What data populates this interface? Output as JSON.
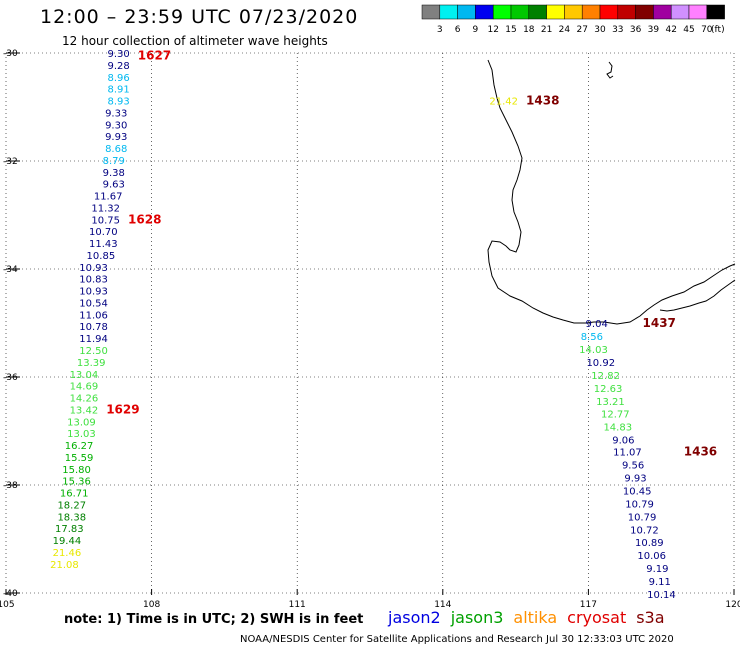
{
  "header": {
    "title": "12:00 – 23:59 UTC 07/23/2020",
    "subtitle": "12 hour collection of altimeter wave heights"
  },
  "colorbar": {
    "unit": "(ft)",
    "bins": [
      {
        "color": "#808080",
        "label": "3"
      },
      {
        "color": "#00f0f0",
        "label": "6"
      },
      {
        "color": "#00b8f0",
        "label": "9"
      },
      {
        "color": "#0000f0",
        "label": "12"
      },
      {
        "color": "#00ff00",
        "label": "15"
      },
      {
        "color": "#00c800",
        "label": "18"
      },
      {
        "color": "#008000",
        "label": "21"
      },
      {
        "color": "#ffff00",
        "label": "24"
      },
      {
        "color": "#ffc800",
        "label": "27"
      },
      {
        "color": "#ff8000",
        "label": "30"
      },
      {
        "color": "#ff0000",
        "label": "33"
      },
      {
        "color": "#c00000",
        "label": "36"
      },
      {
        "color": "#800000",
        "label": "39"
      },
      {
        "color": "#a000a0",
        "label": "42"
      },
      {
        "color": "#d090ff",
        "label": "45"
      },
      {
        "color": "#ff80ff",
        "label": "70"
      },
      {
        "color": "#000000",
        "label": ""
      }
    ]
  },
  "map": {
    "lon_range": [
      105,
      120
    ],
    "lat_range": [
      -30,
      -40
    ],
    "lon_ticks": [
      "105",
      "108",
      "111",
      "114",
      "117",
      "120"
    ],
    "lat_ticks": [
      "-30",
      "-32",
      "-34",
      "-36",
      "-38",
      "-40"
    ]
  },
  "tracks": [
    {
      "time": "1627",
      "time_color": "#e00000",
      "time_lat": -30.05,
      "points": [
        {
          "lon": 107.55,
          "lat": -30.0,
          "v": "9.30",
          "c": "#000080"
        },
        {
          "lon": 107.55,
          "lat": -30.22,
          "v": "9.28",
          "c": "#000080"
        },
        {
          "lon": 107.55,
          "lat": -30.44,
          "v": "8.96",
          "c": "#00b8f0"
        },
        {
          "lon": 107.55,
          "lat": -30.66,
          "v": "8.91",
          "c": "#00b8f0"
        },
        {
          "lon": 107.55,
          "lat": -30.88,
          "v": "8.93",
          "c": "#00b8f0"
        },
        {
          "lon": 107.5,
          "lat": -31.1,
          "v": "9.33",
          "c": "#000080"
        },
        {
          "lon": 107.5,
          "lat": -31.32,
          "v": "9.30",
          "c": "#000080"
        },
        {
          "lon": 107.5,
          "lat": -31.54,
          "v": "9.93",
          "c": "#000080"
        },
        {
          "lon": 107.5,
          "lat": -31.76,
          "v": "8.68",
          "c": "#00b8f0"
        },
        {
          "lon": 107.45,
          "lat": -31.98,
          "v": "8.79",
          "c": "#00b8f0"
        },
        {
          "lon": 107.45,
          "lat": -32.2,
          "v": "9.38",
          "c": "#000080"
        },
        {
          "lon": 107.45,
          "lat": -32.42,
          "v": "9.63",
          "c": "#000080"
        },
        {
          "lon": 107.4,
          "lat": -32.64,
          "v": "11.67",
          "c": "#000080"
        },
        {
          "lon": 107.35,
          "lat": -32.86,
          "v": "11.32",
          "c": "#000080"
        }
      ]
    },
    {
      "time": "1628",
      "time_color": "#e00000",
      "time_lat": -33.08,
      "points": [
        {
          "lon": 107.35,
          "lat": -33.08,
          "v": "10.75",
          "c": "#000080"
        },
        {
          "lon": 107.3,
          "lat": -33.3,
          "v": "10.70",
          "c": "#000080"
        },
        {
          "lon": 107.3,
          "lat": -33.52,
          "v": "11.43",
          "c": "#000080"
        },
        {
          "lon": 107.25,
          "lat": -33.74,
          "v": "10.85",
          "c": "#000080"
        },
        {
          "lon": 107.1,
          "lat": -33.96,
          "v": "10.93",
          "c": "#000080"
        },
        {
          "lon": 107.1,
          "lat": -34.18,
          "v": "10.83",
          "c": "#000080"
        },
        {
          "lon": 107.1,
          "lat": -34.4,
          "v": "10.93",
          "c": "#000080"
        },
        {
          "lon": 107.1,
          "lat": -34.62,
          "v": "10.54",
          "c": "#000080"
        },
        {
          "lon": 107.1,
          "lat": -34.84,
          "v": "11.06",
          "c": "#000080"
        },
        {
          "lon": 107.1,
          "lat": -35.06,
          "v": "10.78",
          "c": "#000080"
        },
        {
          "lon": 107.1,
          "lat": -35.28,
          "v": "11.94",
          "c": "#000080"
        },
        {
          "lon": 107.1,
          "lat": -35.5,
          "v": "12.50",
          "c": "#40e040"
        },
        {
          "lon": 107.05,
          "lat": -35.72,
          "v": "13.39",
          "c": "#40e040"
        },
        {
          "lon": 106.9,
          "lat": -35.94,
          "v": "13.04",
          "c": "#40e040"
        },
        {
          "lon": 106.9,
          "lat": -36.16,
          "v": "14.69",
          "c": "#40e040"
        },
        {
          "lon": 106.9,
          "lat": -36.38,
          "v": "14.26",
          "c": "#40e040"
        }
      ]
    },
    {
      "time": "1629",
      "time_color": "#e00000",
      "time_lat": -36.6,
      "points": [
        {
          "lon": 106.9,
          "lat": -36.6,
          "v": "13.42",
          "c": "#40e040"
        },
        {
          "lon": 106.85,
          "lat": -36.82,
          "v": "13.09",
          "c": "#40e040"
        },
        {
          "lon": 106.85,
          "lat": -37.04,
          "v": "13.03",
          "c": "#40e040"
        },
        {
          "lon": 106.8,
          "lat": -37.26,
          "v": "16.27",
          "c": "#00b000"
        },
        {
          "lon": 106.8,
          "lat": -37.48,
          "v": "15.59",
          "c": "#00b000"
        },
        {
          "lon": 106.75,
          "lat": -37.7,
          "v": "15.80",
          "c": "#00b000"
        },
        {
          "lon": 106.75,
          "lat": -37.92,
          "v": "15.36",
          "c": "#00b000"
        },
        {
          "lon": 106.7,
          "lat": -38.14,
          "v": "16.71",
          "c": "#00b000"
        },
        {
          "lon": 106.65,
          "lat": -38.36,
          "v": "18.27",
          "c": "#008000"
        },
        {
          "lon": 106.65,
          "lat": -38.58,
          "v": "18.38",
          "c": "#008000"
        },
        {
          "lon": 106.6,
          "lat": -38.8,
          "v": "17.83",
          "c": "#008000"
        },
        {
          "lon": 106.55,
          "lat": -39.02,
          "v": "19.44",
          "c": "#008000"
        },
        {
          "lon": 106.55,
          "lat": -39.24,
          "v": "21.46",
          "c": "#e8e800"
        },
        {
          "lon": 106.5,
          "lat": -39.46,
          "v": "21.08",
          "c": "#e8e800"
        }
      ]
    },
    {
      "time": "1438",
      "time_color": "#800000",
      "time_lat": -30.88,
      "points": [
        {
          "lon": 115.55,
          "lat": -30.88,
          "v": "21.42",
          "c": "#e8e800"
        }
      ]
    },
    {
      "time": "1437",
      "time_color": "#800000",
      "time_lat": -35.0,
      "points": [
        {
          "lon": 117.4,
          "lat": -35.0,
          "v": "9.04",
          "c": "#000080"
        },
        {
          "lon": 117.3,
          "lat": -35.24,
          "v": "8.56",
          "c": "#00b8f0"
        },
        {
          "lon": 117.4,
          "lat": -35.48,
          "v": "14.03",
          "c": "#40e040"
        },
        {
          "lon": 117.55,
          "lat": -35.72,
          "v": "10.92",
          "c": "#000080"
        },
        {
          "lon": 117.65,
          "lat": -35.96,
          "v": "12.82",
          "c": "#40e040"
        },
        {
          "lon": 117.7,
          "lat": -36.2,
          "v": "12.63",
          "c": "#40e040"
        },
        {
          "lon": 117.75,
          "lat": -36.44,
          "v": "13.21",
          "c": "#40e040"
        },
        {
          "lon": 117.85,
          "lat": -36.68,
          "v": "12.77",
          "c": "#40e040"
        },
        {
          "lon": 117.9,
          "lat": -36.92,
          "v": "14.83",
          "c": "#40e040"
        },
        {
          "lon": 117.95,
          "lat": -37.16,
          "v": "9.06",
          "c": "#000080"
        }
      ]
    },
    {
      "time": "1436",
      "time_color": "#800000",
      "time_lat": -37.38,
      "points": [
        {
          "lon": 118.1,
          "lat": -37.38,
          "v": "11.07",
          "c": "#000080"
        },
        {
          "lon": 118.15,
          "lat": -37.62,
          "v": "9.56",
          "c": "#000080"
        },
        {
          "lon": 118.2,
          "lat": -37.86,
          "v": "9.93",
          "c": "#000080"
        },
        {
          "lon": 118.3,
          "lat": -38.1,
          "v": "10.45",
          "c": "#000080"
        },
        {
          "lon": 118.35,
          "lat": -38.34,
          "v": "10.79",
          "c": "#000080"
        },
        {
          "lon": 118.4,
          "lat": -38.58,
          "v": "10.79",
          "c": "#000080"
        },
        {
          "lon": 118.45,
          "lat": -38.82,
          "v": "10.72",
          "c": "#000080"
        },
        {
          "lon": 118.55,
          "lat": -39.06,
          "v": "10.89",
          "c": "#000080"
        },
        {
          "lon": 118.6,
          "lat": -39.3,
          "v": "10.06",
          "c": "#000080"
        },
        {
          "lon": 118.65,
          "lat": -39.54,
          "v": "9.19",
          "c": "#000080"
        },
        {
          "lon": 118.7,
          "lat": -39.78,
          "v": "9.11",
          "c": "#000080"
        },
        {
          "lon": 118.8,
          "lat": -40.02,
          "v": "10.14",
          "c": "#000080"
        }
      ]
    }
  ],
  "footer": {
    "note": "note:  1) Time is in UTC;  2) SWH is in feet",
    "satellites": [
      {
        "name": "jason2",
        "color": "#0000e0"
      },
      {
        "name": "jason3",
        "color": "#00a000"
      },
      {
        "name": "altika",
        "color": "#ff9000"
      },
      {
        "name": "cryosat",
        "color": "#e00000"
      },
      {
        "name": "s3a",
        "color": "#800000"
      }
    ],
    "credit": "NOAA/NESDIS Center for Satellite Applications and Research    Jul 30 12:33:03 UTC 2020"
  }
}
